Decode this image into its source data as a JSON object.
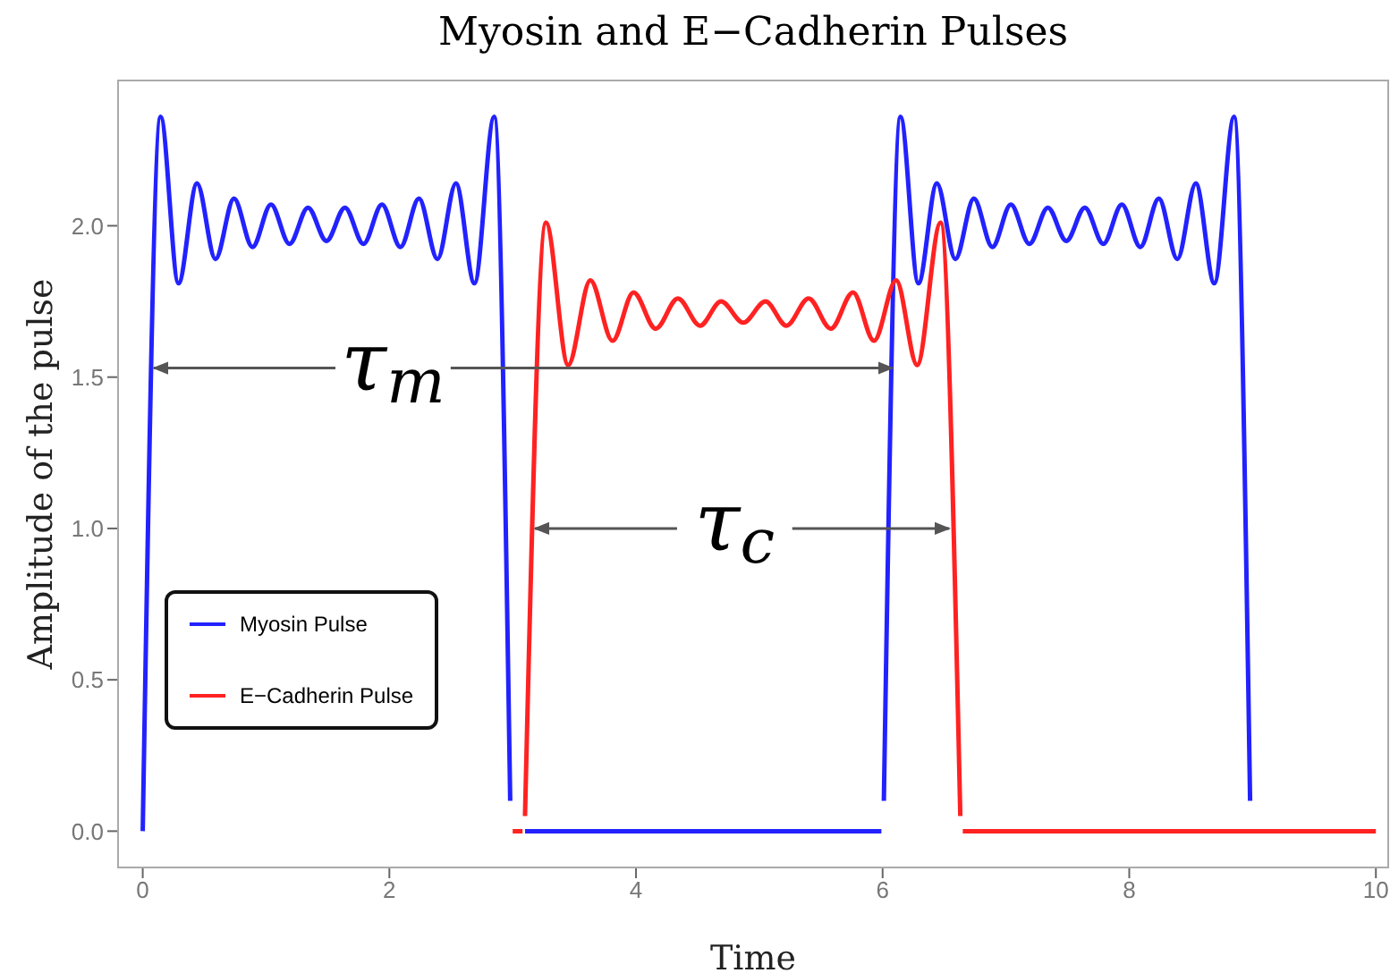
{
  "chart_data": {
    "type": "line",
    "title": "Myosin and E−Cadherin Pulses",
    "xlabel": "Time",
    "ylabel": "Amplitude of the pulse",
    "xlim": [
      -0.2,
      10.1
    ],
    "xticks": [
      0,
      2,
      4,
      6,
      8,
      10
    ],
    "ylim": [
      -0.12,
      2.48
    ],
    "yticks": [
      {
        "value": 0,
        "label": "0.0"
      },
      {
        "value": 0.5,
        "label": "0.5"
      },
      {
        "value": 1.0,
        "label": "1.0"
      },
      {
        "value": 1.5,
        "label": "1.5"
      },
      {
        "value": 2.0,
        "label": "2.0"
      }
    ],
    "grid": false,
    "legend": "bottom left",
    "marker": "none",
    "line_style": "solid",
    "series": [
      {
        "name": "Myosin Pulse",
        "color": "#2222ff",
        "x": [
          0,
          0.145,
          0.29,
          0.44,
          0.59,
          0.74,
          0.89,
          1.04,
          1.19,
          1.34,
          1.49,
          1.64,
          1.79,
          1.94,
          2.09,
          2.24,
          2.39,
          2.54,
          2.69,
          2.85,
          2.98,
          2.99,
          3.1,
          5.99,
          6.0,
          6.01,
          6.145,
          6.29,
          6.44,
          6.59,
          6.74,
          6.89,
          7.04,
          7.19,
          7.34,
          7.49,
          7.64,
          7.79,
          7.94,
          8.09,
          8.24,
          8.39,
          8.54,
          8.69,
          8.85,
          8.98
        ],
        "values": [
          0,
          2.36,
          1.81,
          2.14,
          1.89,
          2.09,
          1.93,
          2.07,
          1.94,
          2.06,
          1.95,
          2.06,
          1.94,
          2.07,
          1.93,
          2.09,
          1.89,
          2.14,
          1.81,
          2.36,
          0.1,
          null,
          0,
          0,
          null,
          0.1,
          2.36,
          1.81,
          2.14,
          1.89,
          2.09,
          1.93,
          2.07,
          1.94,
          2.06,
          1.95,
          2.06,
          1.94,
          2.07,
          1.93,
          2.09,
          1.89,
          2.14,
          1.81,
          2.36,
          0.1
        ]
      },
      {
        "name": "E−Cadherin Pulse",
        "color": "#ff2222",
        "x": [
          3.0,
          3.08,
          3.09,
          3.1,
          3.27,
          3.45,
          3.63,
          3.81,
          3.98,
          4.16,
          4.34,
          4.52,
          4.69,
          4.87,
          5.05,
          5.22,
          5.4,
          5.58,
          5.76,
          5.93,
          6.11,
          6.28,
          6.47,
          6.63,
          6.64,
          6.65,
          10
        ],
        "values": [
          0,
          0,
          null,
          0.05,
          2.01,
          1.54,
          1.82,
          1.62,
          1.78,
          1.66,
          1.76,
          1.67,
          1.75,
          1.68,
          1.75,
          1.67,
          1.76,
          1.66,
          1.78,
          1.62,
          1.82,
          1.54,
          2.01,
          0.05,
          null,
          0,
          0
        ]
      }
    ],
    "annotations": [
      "τ$_{m}$",
      "τ$_{c}$"
    ]
  }
}
